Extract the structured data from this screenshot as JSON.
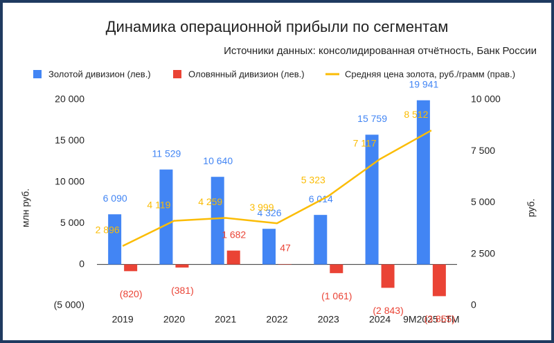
{
  "chart_data": {
    "type": "bar",
    "title": "Динамика операционной прибыли по сегментам",
    "subtitle": "Источники данных: консолидированная отчётность, Банк России",
    "ylabel": "млн руб.",
    "y2label": "руб.",
    "categories": [
      "2019",
      "2020",
      "2021",
      "2022",
      "2023",
      "2024",
      "9M2025 LTM"
    ],
    "series": [
      {
        "name": "Золотой дивизион (лев.)",
        "color": "#4285f4",
        "type": "bar",
        "values": [
          6090,
          11529,
          10640,
          4326,
          6014,
          15759,
          19941
        ],
        "value_labels": [
          "6 090",
          "11 529",
          "10 640",
          "4 326",
          "6 014",
          "15 759",
          "19 941"
        ]
      },
      {
        "name": "Оловянный дивизион (лев.)",
        "color": "#ea4335",
        "type": "bar",
        "values": [
          -820,
          -381,
          1682,
          47,
          -1061,
          -2843,
          -3855
        ],
        "value_labels": [
          "(820)",
          "(381)",
          "1 682",
          "47",
          "(1 061)",
          "(2 843)",
          "(3 855)"
        ]
      },
      {
        "name": "Средняя цена золота, руб./грамм (прав.)",
        "color": "#fbbc04",
        "type": "line",
        "axis": "y2",
        "values": [
          2896,
          4119,
          4259,
          3999,
          5323,
          7117,
          8512
        ],
        "value_labels": [
          "2 896",
          "4 119",
          "4 259",
          "3 999",
          "5 323",
          "7 117",
          "8 512"
        ]
      }
    ],
    "ylim": [
      -5000,
      20000
    ],
    "yticks": [
      {
        "value": -5000,
        "label": "(5 000)"
      },
      0,
      {
        "value": 5000,
        "label": "5 000"
      },
      {
        "value": 10000,
        "label": "10 000"
      },
      {
        "value": 15000,
        "label": "15 000"
      },
      {
        "value": 20000,
        "label": "20 000"
      }
    ],
    "y2lim": [
      0,
      10000
    ],
    "y2ticks": [
      0,
      {
        "value": 2500,
        "label": "2 500"
      },
      {
        "value": 5000,
        "label": "5 000"
      },
      {
        "value": 7500,
        "label": "7 500"
      },
      {
        "value": 10000,
        "label": "10 000"
      }
    ],
    "grid": false,
    "legend": "top"
  }
}
